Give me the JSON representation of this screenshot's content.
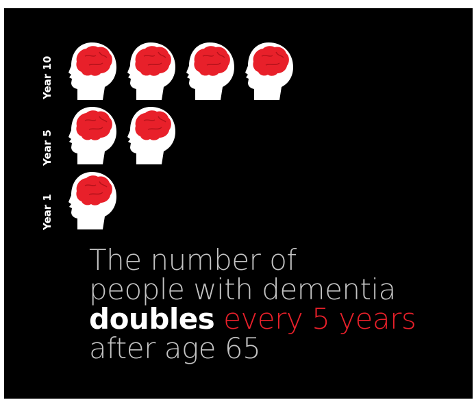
{
  "chart_data": {
    "type": "pictograph",
    "unit": "head-icon",
    "categories": [
      "Year 10",
      "Year 5",
      "Year 1"
    ],
    "values": [
      4,
      2,
      1
    ]
  },
  "headline": {
    "line1": "The number of",
    "line2": "people with dementia",
    "line3_bold": "doubles",
    "line3_accent": " every 5 years",
    "line4": "after age 65"
  },
  "colors": {
    "background": "#000000",
    "head": "#ffffff",
    "brain": "#e8202a",
    "text_muted": "#c3c3c3",
    "text_accent": "#e8202a",
    "text_strong": "#ffffff"
  }
}
